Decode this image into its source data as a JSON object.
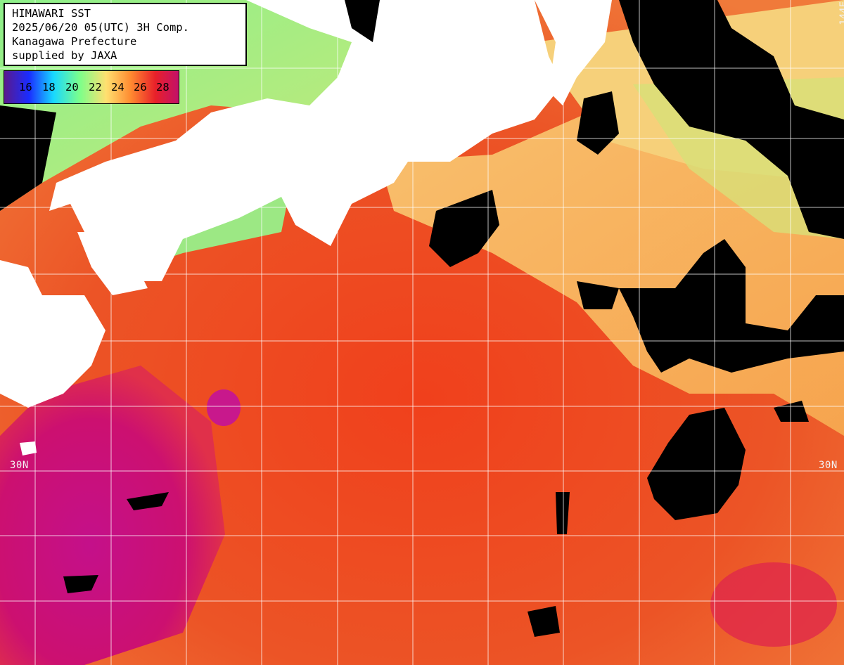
{
  "header": {
    "line1": "HIMAWARI SST",
    "line2": "2025/06/20 05(UTC) 3H Comp.",
    "line3": "Kanagawa Prefecture",
    "line4": "supplied by JAXA"
  },
  "color_scale": {
    "ticks": [
      "16",
      "18",
      "20",
      "22",
      "24",
      "26",
      "28"
    ],
    "colors": [
      "#5a1a8c",
      "#1a2cff",
      "#18d8ff",
      "#7cff8a",
      "#ffe070",
      "#ff8a30",
      "#e8202a",
      "#c0106c"
    ]
  },
  "grid_labels": {
    "lat_left": "30N",
    "lat_right": "30N",
    "lon_top": "144E"
  },
  "colors": {
    "land": "#ffffff",
    "cloud": "#000000",
    "warm_sea": "#e8502a",
    "hot_sea": "#c0108a",
    "cool_sea": "#f8b860",
    "cold_sea": "#a8e880",
    "grid": "#ffffff"
  }
}
